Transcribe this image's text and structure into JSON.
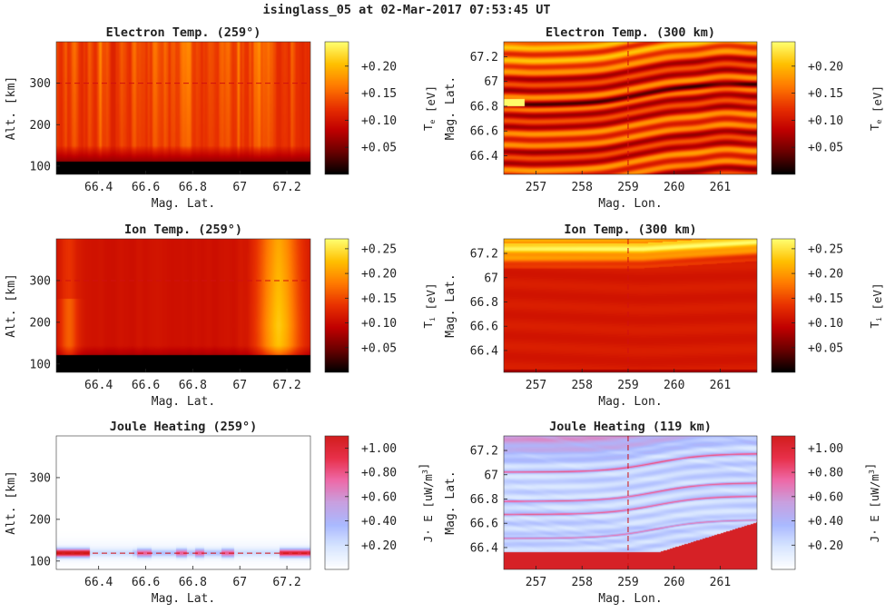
{
  "figure": {
    "title": "isinglass_05 at 02-Mar-2017 07:53:45 UT"
  },
  "colors": {
    "hot": [
      "#000000",
      "#6a0000",
      "#c00000",
      "#e83000",
      "#ff7a00",
      "#ffc000",
      "#ffff70"
    ],
    "joule": [
      "#ffffff",
      "#d8e6ff",
      "#aab9ff",
      "#c8a0e0",
      "#ee6aa8",
      "#e8304a",
      "#d21e1e"
    ]
  },
  "chart_data": [
    {
      "id": "te_alt",
      "type": "heatmap",
      "title": "Electron Temp. (259°)",
      "xlabel": "Mag. Lat.",
      "ylabel": "Alt. [km]",
      "xticks": [
        "66.4",
        "66.6",
        "66.8",
        "67",
        "67.2"
      ],
      "xtick_values": [
        66.4,
        66.6,
        66.8,
        67.0,
        67.2
      ],
      "yticks": [
        "100",
        "200",
        "300"
      ],
      "ytick_values": [
        100,
        200,
        300
      ],
      "xlim": [
        66.22,
        67.3
      ],
      "ylim": [
        80,
        400
      ],
      "colorbar": {
        "label": "T_e [eV]",
        "ticks": [
          "+0.05",
          "+0.10",
          "+0.15",
          "+0.20"
        ],
        "tick_values": [
          0.05,
          0.1,
          0.15,
          0.2
        ],
        "range": [
          0.0,
          0.245
        ],
        "cmap": "hot"
      },
      "dashed_line": {
        "axis": "y",
        "value": 300
      }
    },
    {
      "id": "te_map",
      "type": "heatmap",
      "title": "Electron Temp. (300 km)",
      "xlabel": "Mag. Lon.",
      "ylabel": "Mag. Lat.",
      "xticks": [
        "257",
        "258",
        "259",
        "260",
        "261"
      ],
      "xtick_values": [
        257,
        258,
        259,
        260,
        261
      ],
      "yticks": [
        "66.4",
        "66.6",
        "66.8",
        "67",
        "67.2"
      ],
      "ytick_values": [
        66.4,
        66.6,
        66.8,
        67.0,
        67.2
      ],
      "xlim": [
        256.3,
        261.8
      ],
      "ylim": [
        66.25,
        67.32
      ],
      "colorbar": {
        "label": "T_e [eV]",
        "ticks": [
          "+0.05",
          "+0.10",
          "+0.15",
          "+0.20"
        ],
        "tick_values": [
          0.05,
          0.1,
          0.15,
          0.2
        ],
        "range": [
          0.0,
          0.245
        ],
        "cmap": "hot"
      },
      "dashed_line": {
        "axis": "x",
        "value": 259
      }
    },
    {
      "id": "ti_alt",
      "type": "heatmap",
      "title": "Ion Temp. (259°)",
      "xlabel": "Mag. Lat.",
      "ylabel": "Alt. [km]",
      "xticks": [
        "66.4",
        "66.6",
        "66.8",
        "67",
        "67.2"
      ],
      "xtick_values": [
        66.4,
        66.6,
        66.8,
        67.0,
        67.2
      ],
      "yticks": [
        "100",
        "200",
        "300"
      ],
      "ytick_values": [
        100,
        200,
        300
      ],
      "xlim": [
        66.22,
        67.3
      ],
      "ylim": [
        80,
        400
      ],
      "colorbar": {
        "label": "T_i [eV]",
        "ticks": [
          "+0.05",
          "+0.10",
          "+0.15",
          "+0.20",
          "+0.25"
        ],
        "tick_values": [
          0.05,
          0.1,
          0.15,
          0.2,
          0.25
        ],
        "range": [
          0.0,
          0.27
        ],
        "cmap": "hot"
      },
      "dashed_line": {
        "axis": "y",
        "value": 300
      }
    },
    {
      "id": "ti_map",
      "type": "heatmap",
      "title": "Ion Temp. (300 km)",
      "xlabel": "Mag. Lon.",
      "ylabel": "Mag. Lat.",
      "xticks": [
        "257",
        "258",
        "259",
        "260",
        "261"
      ],
      "xtick_values": [
        257,
        258,
        259,
        260,
        261
      ],
      "yticks": [
        "66.4",
        "66.6",
        "66.8",
        "67",
        "67.2"
      ],
      "ytick_values": [
        66.4,
        66.6,
        66.8,
        67.0,
        67.2
      ],
      "xlim": [
        256.3,
        261.8
      ],
      "ylim": [
        66.22,
        67.32
      ],
      "colorbar": {
        "label": "T_i [eV]",
        "ticks": [
          "+0.05",
          "+0.10",
          "+0.15",
          "+0.20",
          "+0.25"
        ],
        "tick_values": [
          0.05,
          0.1,
          0.15,
          0.2,
          0.25
        ],
        "range": [
          0.0,
          0.27
        ],
        "cmap": "hot"
      },
      "dashed_line": {
        "axis": "x",
        "value": 259
      }
    },
    {
      "id": "jh_alt",
      "type": "heatmap",
      "title": "Joule Heating (259°)",
      "xlabel": "Mag. Lat.",
      "ylabel": "Alt. [km]",
      "xticks": [
        "66.4",
        "66.6",
        "66.8",
        "67",
        "67.2"
      ],
      "xtick_values": [
        66.4,
        66.6,
        66.8,
        67.0,
        67.2
      ],
      "yticks": [
        "100",
        "200",
        "300"
      ],
      "ytick_values": [
        100,
        200,
        300
      ],
      "xlim": [
        66.22,
        67.3
      ],
      "ylim": [
        80,
        400
      ],
      "colorbar": {
        "label": "J· E [uW/m^3]",
        "ticks": [
          "+0.20",
          "+0.40",
          "+0.60",
          "+0.80",
          "+1.00"
        ],
        "tick_values": [
          0.2,
          0.4,
          0.6,
          0.8,
          1.0
        ],
        "range": [
          0.0,
          1.1
        ],
        "cmap": "joule"
      },
      "dashed_line": {
        "axis": "y",
        "value": 119
      }
    },
    {
      "id": "jh_map",
      "type": "heatmap",
      "title": "Joule Heating (119 km)",
      "xlabel": "Mag. Lon.",
      "ylabel": "Mag. Lat.",
      "xticks": [
        "257",
        "258",
        "259",
        "260",
        "261"
      ],
      "xtick_values": [
        257,
        258,
        259,
        260,
        261
      ],
      "yticks": [
        "66.4",
        "66.6",
        "66.8",
        "67",
        "67.2"
      ],
      "ytick_values": [
        66.4,
        66.6,
        66.8,
        67.0,
        67.2
      ],
      "xlim": [
        256.3,
        261.8
      ],
      "ylim": [
        66.22,
        67.32
      ],
      "colorbar": {
        "label": "J· E [uW/m^3]",
        "ticks": [
          "+0.20",
          "+0.40",
          "+0.60",
          "+0.80",
          "+1.00"
        ],
        "tick_values": [
          0.2,
          0.4,
          0.6,
          0.8,
          1.0
        ],
        "range": [
          0.0,
          1.1
        ],
        "cmap": "joule"
      },
      "dashed_line": {
        "axis": "x",
        "value": 259
      }
    }
  ]
}
